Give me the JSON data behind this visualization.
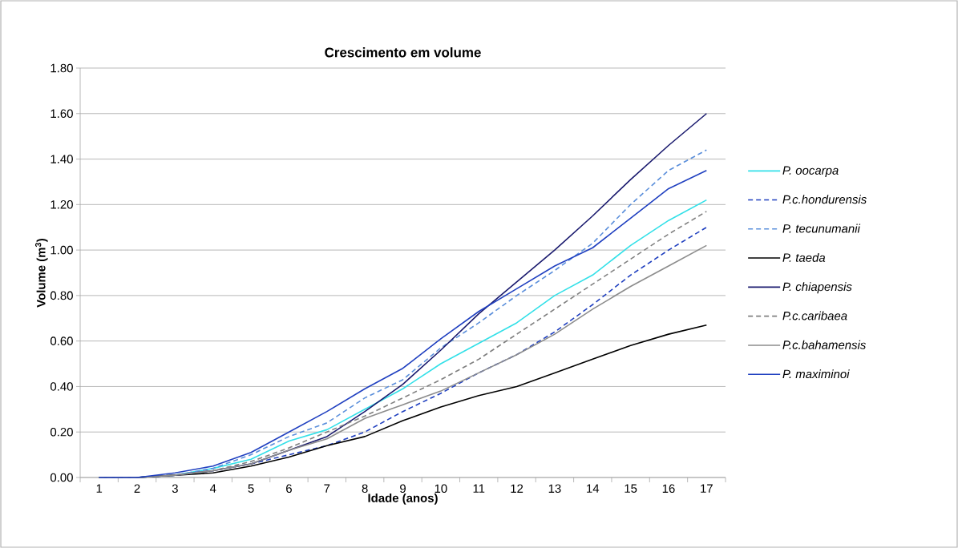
{
  "chart_data": {
    "type": "line",
    "title": "Crescimento em volume",
    "xlabel": "Idade (anos)",
    "ylabel": "Volume (m$^{3}$)",
    "categories": [
      "1",
      "2",
      "3",
      "4",
      "5",
      "6",
      "7",
      "8",
      "9",
      "10",
      "11",
      "12",
      "13",
      "14",
      "15",
      "16",
      "17"
    ],
    "ylim": [
      0,
      1.8
    ],
    "yticks": [
      {
        "value": 0,
        "label": "0.00"
      },
      {
        "value": 0.2,
        "label": "0.20"
      },
      {
        "value": 0.4,
        "label": "0.40"
      },
      {
        "value": 0.6,
        "label": "0.60"
      },
      {
        "value": 0.8,
        "label": "0.80"
      },
      {
        "value": 1.0,
        "label": "1.00"
      },
      {
        "value": 1.2,
        "label": "1.20"
      },
      {
        "value": 1.4,
        "label": "1.40"
      },
      {
        "value": 1.6,
        "label": "1.60"
      },
      {
        "value": 1.8,
        "label": "1.80"
      }
    ],
    "grid": "y",
    "legend": "right",
    "marker": "none",
    "series": [
      {
        "name": "P. oocarpa",
        "color": "#33e0e8",
        "line_style": "solid",
        "values": [
          0,
          0,
          0.01,
          0.04,
          0.08,
          0.16,
          0.21,
          0.3,
          0.39,
          0.5,
          0.59,
          0.68,
          0.8,
          0.89,
          1.02,
          1.13,
          1.22
        ]
      },
      {
        "name": "P.c.hondurensis",
        "color": "#1f3fbf",
        "line_style": "dashed",
        "values": [
          0,
          0,
          0.01,
          0.03,
          0.06,
          0.1,
          0.14,
          0.2,
          0.29,
          0.37,
          0.46,
          0.54,
          0.64,
          0.76,
          0.89,
          1.0,
          1.1
        ]
      },
      {
        "name": "P. tecunumanii",
        "color": "#5b8fdb",
        "line_style": "dashed",
        "values": [
          0,
          0,
          0.01,
          0.04,
          0.1,
          0.18,
          0.24,
          0.35,
          0.43,
          0.57,
          0.68,
          0.8,
          0.91,
          1.03,
          1.2,
          1.35,
          1.44
        ]
      },
      {
        "name": "P. taeda",
        "color": "#000000",
        "line_style": "solid",
        "values": [
          0,
          0,
          0.01,
          0.02,
          0.05,
          0.09,
          0.14,
          0.18,
          0.25,
          0.31,
          0.36,
          0.4,
          0.46,
          0.52,
          0.58,
          0.63,
          0.67
        ]
      },
      {
        "name": "P. chiapensis",
        "color": "#1a1a6e",
        "line_style": "solid",
        "values": [
          0,
          0,
          0.01,
          0.03,
          0.06,
          0.12,
          0.18,
          0.29,
          0.41,
          0.56,
          0.72,
          0.86,
          1.0,
          1.15,
          1.31,
          1.46,
          1.6
        ]
      },
      {
        "name": "P.c.caribaea",
        "color": "#808080",
        "line_style": "dashed",
        "values": [
          0,
          0,
          0.01,
          0.03,
          0.07,
          0.13,
          0.2,
          0.27,
          0.35,
          0.43,
          0.52,
          0.63,
          0.74,
          0.85,
          0.96,
          1.07,
          1.17
        ]
      },
      {
        "name": "P.c.bahamensis",
        "color": "#8c8c8c",
        "line_style": "solid",
        "values": [
          0,
          0,
          0.01,
          0.03,
          0.06,
          0.12,
          0.17,
          0.26,
          0.32,
          0.38,
          0.46,
          0.54,
          0.63,
          0.74,
          0.84,
          0.93,
          1.02
        ]
      },
      {
        "name": "P. maximinoi",
        "color": "#2040c0",
        "line_style": "solid",
        "values": [
          0,
          0,
          0.02,
          0.05,
          0.11,
          0.2,
          0.29,
          0.39,
          0.48,
          0.61,
          0.73,
          0.83,
          0.93,
          1.01,
          1.14,
          1.27,
          1.35
        ]
      }
    ]
  }
}
